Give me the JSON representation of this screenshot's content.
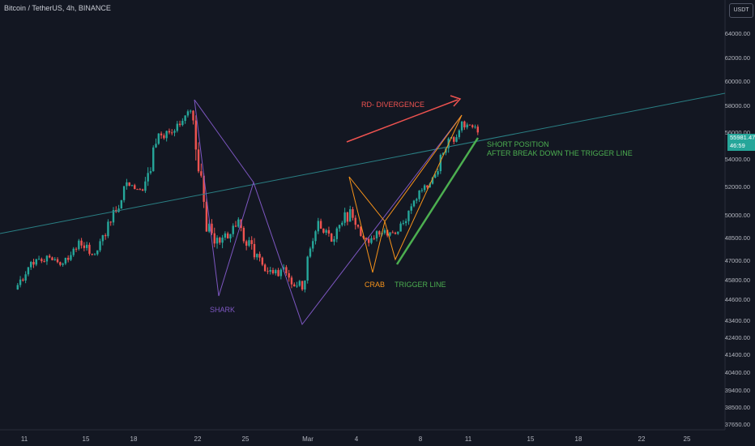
{
  "header": {
    "symbol_line": "Bitcoin / TetherUS, 4h, BINANCE",
    "currency": "USDT"
  },
  "price_tag": {
    "price": "55981.47",
    "countdown": "46:59"
  },
  "colors": {
    "background": "#131722",
    "up": "#26a69a",
    "down": "#ef5350",
    "shark": "#7e57c2",
    "crab": "#f7931a",
    "trigger": "#4caf50",
    "trendline": "#2a7f84",
    "divergence": "#ef5350"
  },
  "annotations": {
    "rd_divergence": "RD- DIVERGENCE",
    "shark": "SHARK",
    "crab": "CRAB",
    "trigger": "TRIGGER LINE",
    "short_1": "SHORT POSITION",
    "short_2": "AFTER BREAK DOWN THE TRIGGER LINE"
  },
  "chart_data": {
    "type": "candlestick",
    "y_ticks": [
      "64000.00",
      "62000.00",
      "60000.00",
      "58000.00",
      "56000.00",
      "54000.00",
      "52000.00",
      "50000.00",
      "48500.00",
      "47000.00",
      "45800.00",
      "44600.00",
      "43400.00",
      "42400.00",
      "41400.00",
      "40400.00",
      "39400.00",
      "38500.00",
      "37650.00"
    ],
    "x_ticks": [
      "11",
      "15",
      "18",
      "22",
      "25",
      "Mar",
      "4",
      "8",
      "11",
      "15",
      "18",
      "22",
      "25"
    ],
    "ohlc": [
      {
        "day": "Feb 11",
        "o": 45200,
        "h": 47600,
        "l": 44500,
        "c": 46900
      },
      {
        "day": "Feb 12",
        "o": 46900,
        "h": 48500,
        "l": 45800,
        "c": 47300
      },
      {
        "day": "Feb 13",
        "o": 47300,
        "h": 48200,
        "l": 46300,
        "c": 46800
      },
      {
        "day": "Feb 14",
        "o": 46800,
        "h": 49500,
        "l": 46500,
        "c": 48300
      },
      {
        "day": "Feb 15",
        "o": 48300,
        "h": 49200,
        "l": 46300,
        "c": 47400
      },
      {
        "day": "Feb 16",
        "o": 47400,
        "h": 50500,
        "l": 47000,
        "c": 49500
      },
      {
        "day": "Feb 17",
        "o": 49500,
        "h": 52800,
        "l": 49000,
        "c": 52300
      },
      {
        "day": "Feb 18",
        "o": 52300,
        "h": 52600,
        "l": 51000,
        "c": 51700
      },
      {
        "day": "Feb 19",
        "o": 51700,
        "h": 56300,
        "l": 50700,
        "c": 55900
      },
      {
        "day": "Feb 20",
        "o": 55900,
        "h": 57500,
        "l": 54000,
        "c": 56100
      },
      {
        "day": "Feb 21",
        "o": 56100,
        "h": 58400,
        "l": 55500,
        "c": 57600
      },
      {
        "day": "Feb 22",
        "o": 57600,
        "h": 57800,
        "l": 47500,
        "c": 48900
      },
      {
        "day": "Feb 23",
        "o": 48900,
        "h": 50000,
        "l": 44900,
        "c": 48500
      },
      {
        "day": "Feb 24",
        "o": 48500,
        "h": 51300,
        "l": 46900,
        "c": 49700
      },
      {
        "day": "Feb 25",
        "o": 49700,
        "h": 52000,
        "l": 46800,
        "c": 47200
      },
      {
        "day": "Feb 26",
        "o": 47200,
        "h": 48200,
        "l": 45000,
        "c": 46400
      },
      {
        "day": "Feb 27",
        "o": 46400,
        "h": 48300,
        "l": 45300,
        "c": 46200
      },
      {
        "day": "Feb 28",
        "o": 46200,
        "h": 46700,
        "l": 43300,
        "c": 45200
      },
      {
        "day": "Mar 1",
        "o": 45200,
        "h": 49800,
        "l": 45000,
        "c": 49600
      },
      {
        "day": "Mar 2",
        "o": 49600,
        "h": 50100,
        "l": 47100,
        "c": 48400
      },
      {
        "day": "Mar 3",
        "o": 48400,
        "h": 52400,
        "l": 48100,
        "c": 50400
      },
      {
        "day": "Mar 4",
        "o": 50400,
        "h": 51700,
        "l": 47600,
        "c": 48400
      },
      {
        "day": "Mar 5",
        "o": 48400,
        "h": 49500,
        "l": 46300,
        "c": 48800
      },
      {
        "day": "Mar 6",
        "o": 48800,
        "h": 49200,
        "l": 47200,
        "c": 48900
      },
      {
        "day": "Mar 7",
        "o": 48900,
        "h": 51400,
        "l": 48300,
        "c": 51000
      },
      {
        "day": "Mar 8",
        "o": 51000,
        "h": 52400,
        "l": 49300,
        "c": 52200
      },
      {
        "day": "Mar 9",
        "o": 52200,
        "h": 54900,
        "l": 51800,
        "c": 54800
      },
      {
        "day": "Mar 10",
        "o": 54800,
        "h": 57200,
        "l": 53000,
        "c": 56800
      },
      {
        "day": "Mar 11",
        "o": 56800,
        "h": 57300,
        "l": 54700,
        "c": 55981
      }
    ]
  }
}
